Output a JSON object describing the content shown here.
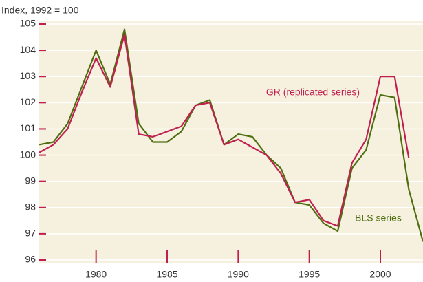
{
  "chart_data": {
    "type": "line",
    "y_axis_label": "Index, 1992 = 100",
    "x": [
      1976,
      1977,
      1978,
      1979,
      1980,
      1981,
      1982,
      1983,
      1984,
      1985,
      1986,
      1987,
      1988,
      1989,
      1990,
      1991,
      1992,
      1993,
      1994,
      1995,
      1996,
      1997,
      1998,
      1999,
      2000,
      2001,
      2002,
      2003
    ],
    "series": [
      {
        "name": "BLS series",
        "color": "#4f6e12",
        "values": [
          100.4,
          100.5,
          101.2,
          102.6,
          104.0,
          102.7,
          104.8,
          101.2,
          100.5,
          100.5,
          100.9,
          101.9,
          102.1,
          100.4,
          100.8,
          100.7,
          100.0,
          99.5,
          98.2,
          98.1,
          97.4,
          97.1,
          99.5,
          100.2,
          102.3,
          102.2,
          98.7,
          96.7
        ]
      },
      {
        "name": "GR (replicated series)",
        "color": "#c0204f",
        "values": [
          100.1,
          100.4,
          101.0,
          102.4,
          103.7,
          102.6,
          104.6,
          100.8,
          100.7,
          100.9,
          101.1,
          101.9,
          102.0,
          100.4,
          100.6,
          100.3,
          100.0,
          99.3,
          98.2,
          98.3,
          97.5,
          97.3,
          99.7,
          100.6,
          103.0,
          103.0,
          99.9,
          null
        ]
      }
    ],
    "xlim": [
      1976,
      2003
    ],
    "xticks": [
      1980,
      1985,
      1990,
      1995,
      2000
    ],
    "ylim": [
      96,
      105
    ],
    "yticks": [
      96,
      97,
      98,
      99,
      100,
      101,
      102,
      103,
      104,
      105
    ],
    "grid": true,
    "background": "#f6f1de",
    "tick_color": "#c0204f"
  }
}
